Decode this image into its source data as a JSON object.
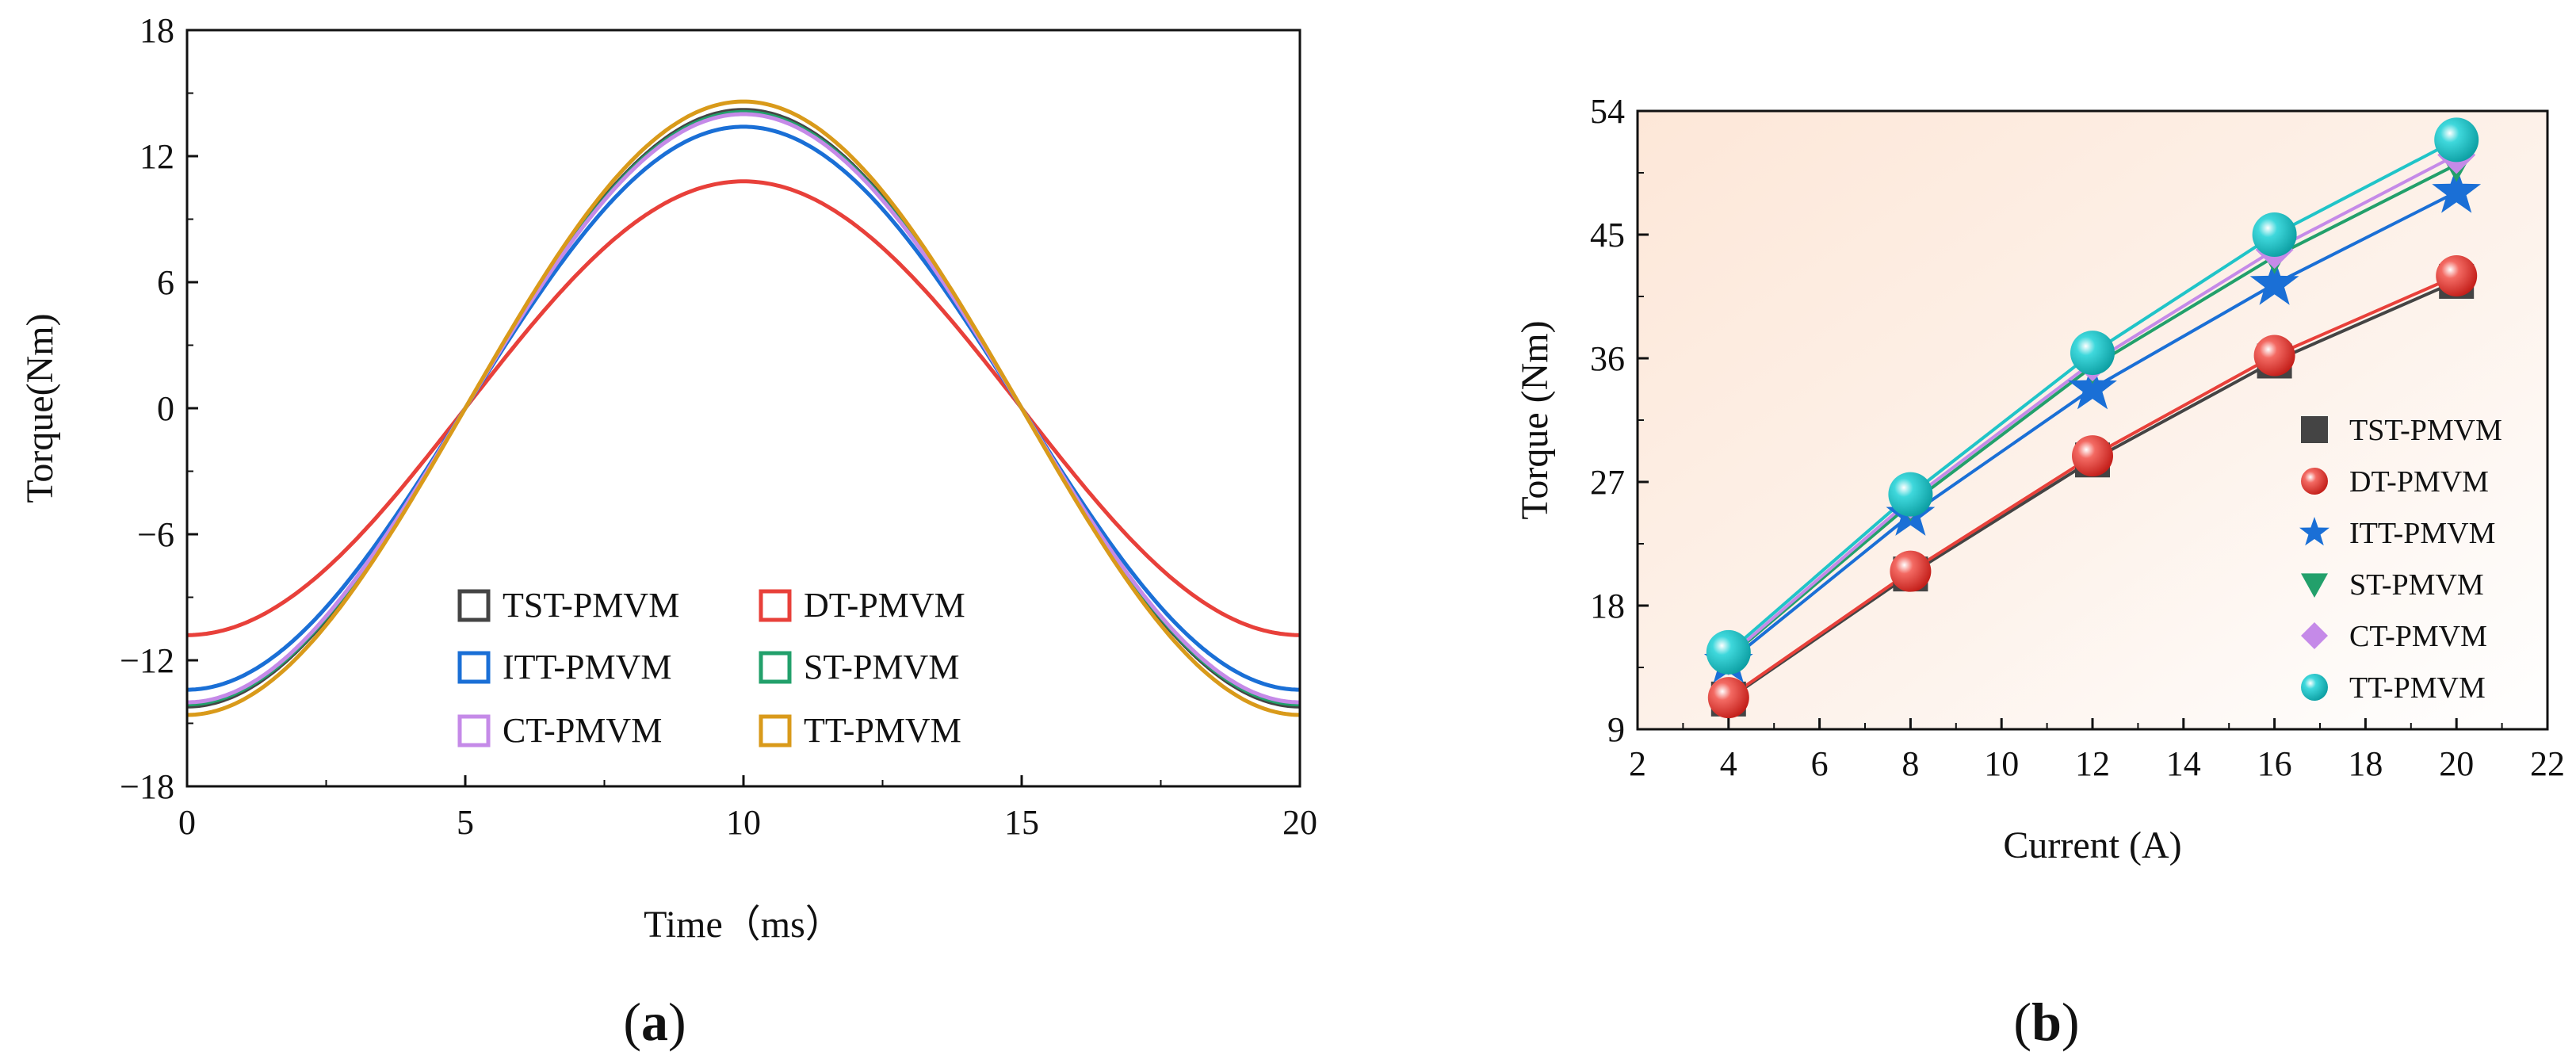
{
  "chart_data": [
    {
      "panel": "a",
      "type": "line",
      "xlabel": "Time（ms）",
      "ylabel": "Torque(Nm)",
      "xlim": [
        0,
        20
      ],
      "ylim": [
        -18,
        18
      ],
      "x_ticks": [
        "0",
        "5",
        "10",
        "15",
        "20"
      ],
      "y_ticks": [
        "−18",
        "−12",
        "−6",
        "0",
        "6",
        "12",
        "18"
      ],
      "legend_placement": "bottom-center",
      "panel_label": {
        "open": "(",
        "letter": "a",
        "close": ")"
      },
      "series": [
        {
          "name": "TST-PMVM",
          "color": "#444444",
          "x": [
            0,
            5,
            10,
            15,
            20
          ],
          "y": [
            -14.2,
            0,
            14.2,
            0,
            -14.2
          ],
          "amplitude": 14.2
        },
        {
          "name": "DT-PMVM",
          "color": "#e8403a",
          "x": [
            0,
            5,
            10,
            15,
            20
          ],
          "y": [
            -10.8,
            0,
            10.8,
            0,
            -10.8
          ],
          "amplitude": 10.8
        },
        {
          "name": "ITT-PMVM",
          "color": "#1a6fd6",
          "x": [
            0,
            5,
            10,
            15,
            20
          ],
          "y": [
            -13.4,
            0,
            13.4,
            0,
            -13.4
          ],
          "amplitude": 13.4
        },
        {
          "name": "ST-PMVM",
          "color": "#22a06b",
          "x": [
            0,
            5,
            10,
            15,
            20
          ],
          "y": [
            -14.1,
            0,
            14.1,
            0,
            -14.1
          ],
          "amplitude": 14.1
        },
        {
          "name": "CT-PMVM",
          "color": "#c58ae8",
          "x": [
            0,
            5,
            10,
            15,
            20
          ],
          "y": [
            -14.0,
            0,
            14.0,
            0,
            -14.0
          ],
          "amplitude": 14.0
        },
        {
          "name": "TT-PMVM",
          "color": "#d99a1a",
          "x": [
            0,
            5,
            10,
            15,
            20
          ],
          "y": [
            -14.6,
            0,
            14.6,
            0,
            -14.6
          ],
          "amplitude": 14.6
        }
      ]
    },
    {
      "panel": "b",
      "type": "line",
      "xlabel": "Current (A)",
      "ylabel": "Torque (Nm)",
      "xlim": [
        2,
        22
      ],
      "ylim": [
        9,
        54
      ],
      "x_ticks": [
        "2",
        "4",
        "6",
        "8",
        "10",
        "12",
        "14",
        "16",
        "18",
        "20",
        "22"
      ],
      "y_ticks": [
        "9",
        "18",
        "27",
        "36",
        "45",
        "54"
      ],
      "legend_placement": "bottom-right",
      "background": "gradient peach to white",
      "panel_label": {
        "open": "(",
        "letter": "b",
        "close": ")"
      },
      "x": [
        4,
        8,
        12,
        16,
        20
      ],
      "series": [
        {
          "name": "TST-PMVM",
          "color": "#444444",
          "marker": "square",
          "values": [
            11.2,
            20.3,
            28.6,
            35.8,
            41.6
          ]
        },
        {
          "name": "DT-PMVM",
          "color": "#e8403a",
          "marker": "circle",
          "values": [
            11.3,
            20.5,
            28.9,
            36.2,
            42.0
          ]
        },
        {
          "name": "ITT-PMVM",
          "color": "#1a6fd6",
          "marker": "star",
          "values": [
            13.9,
            24.6,
            33.8,
            41.4,
            48.1
          ]
        },
        {
          "name": "ST-PMVM",
          "color": "#22a06b",
          "marker": "triangle-down",
          "values": [
            14.2,
            25.4,
            35.4,
            43.4,
            50.1
          ]
        },
        {
          "name": "CT-PMVM",
          "color": "#c58ae8",
          "marker": "diamond",
          "values": [
            14.3,
            25.7,
            35.7,
            43.9,
            50.8
          ]
        },
        {
          "name": "TT-PMVM",
          "color": "#20c4c8",
          "marker": "sphere",
          "values": [
            14.6,
            26.1,
            36.4,
            45.0,
            51.9
          ]
        }
      ]
    }
  ]
}
